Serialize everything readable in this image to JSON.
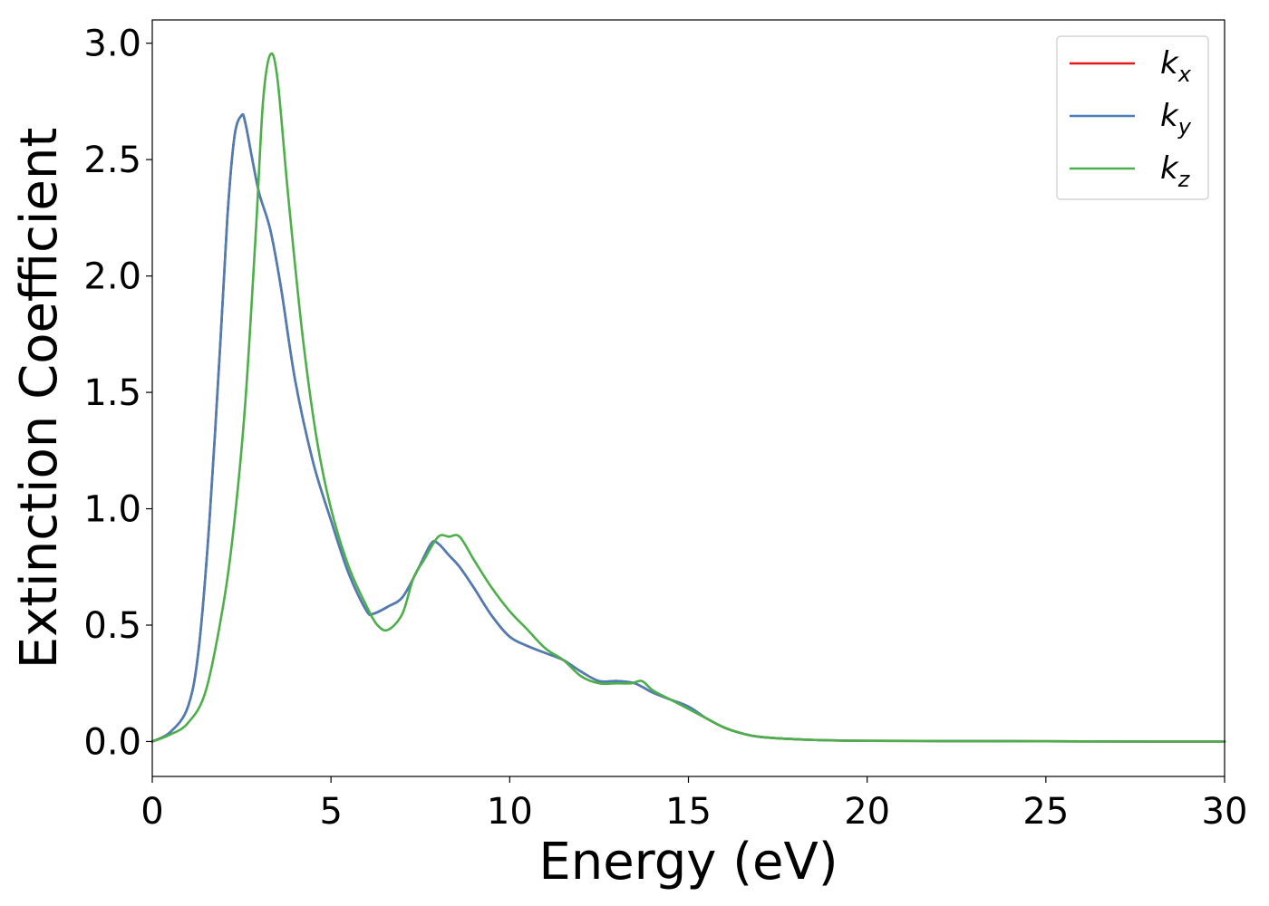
{
  "chart_data": {
    "type": "line",
    "title": "",
    "xlabel": "Energy (eV)",
    "ylabel": "Extinction Coefficient",
    "xlim": [
      0,
      30
    ],
    "ylim": [
      -0.15,
      3.1
    ],
    "xticks": [
      0,
      5,
      10,
      15,
      20,
      25,
      30
    ],
    "xtick_labels": [
      "0",
      "5",
      "10",
      "15",
      "20",
      "25",
      "30"
    ],
    "yticks": [
      0.0,
      0.5,
      1.0,
      1.5,
      2.0,
      2.5,
      3.0
    ],
    "ytick_labels": [
      "0.0",
      "0.5",
      "1.0",
      "1.5",
      "2.0",
      "2.5",
      "3.0"
    ],
    "grid": false,
    "legend_position": "top-right",
    "series": [
      {
        "name": "k_x",
        "label_base": "k",
        "label_sub": "x",
        "color": "#e41a1c",
        "x": [
          0,
          0.5,
          1.0,
          1.3,
          1.6,
          1.9,
          2.1,
          2.3,
          2.5,
          2.6,
          2.8,
          3.0,
          3.3,
          3.6,
          4.0,
          4.5,
          5.0,
          5.5,
          6.0,
          6.2,
          6.6,
          7.0,
          7.4,
          7.8,
          8.0,
          8.3,
          8.6,
          9.0,
          9.5,
          10.0,
          10.5,
          11.0,
          11.5,
          12.0,
          12.5,
          13.0,
          13.5,
          14.0,
          14.5,
          15.0,
          15.5,
          16.0,
          16.5,
          17.0,
          18.0,
          19.0,
          20.0,
          22.0,
          25.0,
          28.0,
          30.0
        ],
        "y": [
          0.0,
          0.04,
          0.15,
          0.4,
          0.95,
          1.7,
          2.25,
          2.6,
          2.69,
          2.66,
          2.5,
          2.35,
          2.2,
          1.95,
          1.55,
          1.2,
          0.95,
          0.72,
          0.56,
          0.55,
          0.58,
          0.62,
          0.73,
          0.85,
          0.85,
          0.8,
          0.75,
          0.66,
          0.54,
          0.45,
          0.41,
          0.38,
          0.35,
          0.3,
          0.26,
          0.26,
          0.25,
          0.21,
          0.18,
          0.15,
          0.1,
          0.06,
          0.035,
          0.02,
          0.01,
          0.005,
          0.003,
          0.002,
          0.001,
          0.0,
          0.0
        ]
      },
      {
        "name": "k_y",
        "label_base": "k",
        "label_sub": "y",
        "color": "#4a7eb5",
        "x": [
          0,
          0.5,
          1.0,
          1.3,
          1.6,
          1.9,
          2.1,
          2.3,
          2.5,
          2.6,
          2.8,
          3.0,
          3.3,
          3.6,
          4.0,
          4.5,
          5.0,
          5.5,
          6.0,
          6.2,
          6.6,
          7.0,
          7.4,
          7.8,
          8.0,
          8.3,
          8.6,
          9.0,
          9.5,
          10.0,
          10.5,
          11.0,
          11.5,
          12.0,
          12.5,
          13.0,
          13.5,
          14.0,
          14.5,
          15.0,
          15.5,
          16.0,
          16.5,
          17.0,
          18.0,
          19.0,
          20.0,
          22.0,
          25.0,
          28.0,
          30.0
        ],
        "y": [
          0.0,
          0.04,
          0.15,
          0.4,
          0.95,
          1.7,
          2.25,
          2.6,
          2.69,
          2.66,
          2.5,
          2.35,
          2.2,
          1.95,
          1.55,
          1.2,
          0.95,
          0.72,
          0.56,
          0.55,
          0.58,
          0.62,
          0.73,
          0.85,
          0.85,
          0.8,
          0.75,
          0.66,
          0.54,
          0.45,
          0.41,
          0.38,
          0.35,
          0.3,
          0.26,
          0.26,
          0.25,
          0.21,
          0.18,
          0.15,
          0.1,
          0.06,
          0.035,
          0.02,
          0.01,
          0.005,
          0.003,
          0.002,
          0.001,
          0.0,
          0.0
        ]
      },
      {
        "name": "k_z",
        "label_base": "k",
        "label_sub": "z",
        "color": "#4daf4a",
        "x": [
          0,
          0.5,
          1.0,
          1.5,
          2.0,
          2.3,
          2.6,
          2.9,
          3.1,
          3.3,
          3.5,
          3.8,
          4.2,
          4.6,
          5.0,
          5.5,
          6.0,
          6.3,
          6.6,
          7.0,
          7.3,
          7.6,
          8.0,
          8.3,
          8.6,
          9.0,
          9.5,
          10.0,
          10.5,
          11.0,
          11.5,
          12.0,
          12.5,
          13.0,
          13.4,
          13.7,
          14.0,
          14.5,
          15.0,
          15.5,
          16.0,
          16.5,
          17.0,
          18.0,
          19.0,
          20.0,
          22.0,
          25.0,
          28.0,
          30.0
        ],
        "y": [
          0.0,
          0.03,
          0.08,
          0.22,
          0.6,
          0.95,
          1.45,
          2.2,
          2.75,
          2.95,
          2.85,
          2.35,
          1.75,
          1.3,
          1.0,
          0.75,
          0.58,
          0.5,
          0.48,
          0.55,
          0.7,
          0.78,
          0.88,
          0.88,
          0.88,
          0.78,
          0.66,
          0.56,
          0.48,
          0.4,
          0.35,
          0.28,
          0.25,
          0.25,
          0.25,
          0.26,
          0.22,
          0.18,
          0.14,
          0.1,
          0.06,
          0.035,
          0.02,
          0.01,
          0.005,
          0.003,
          0.002,
          0.001,
          0.0,
          0.0
        ]
      }
    ]
  }
}
